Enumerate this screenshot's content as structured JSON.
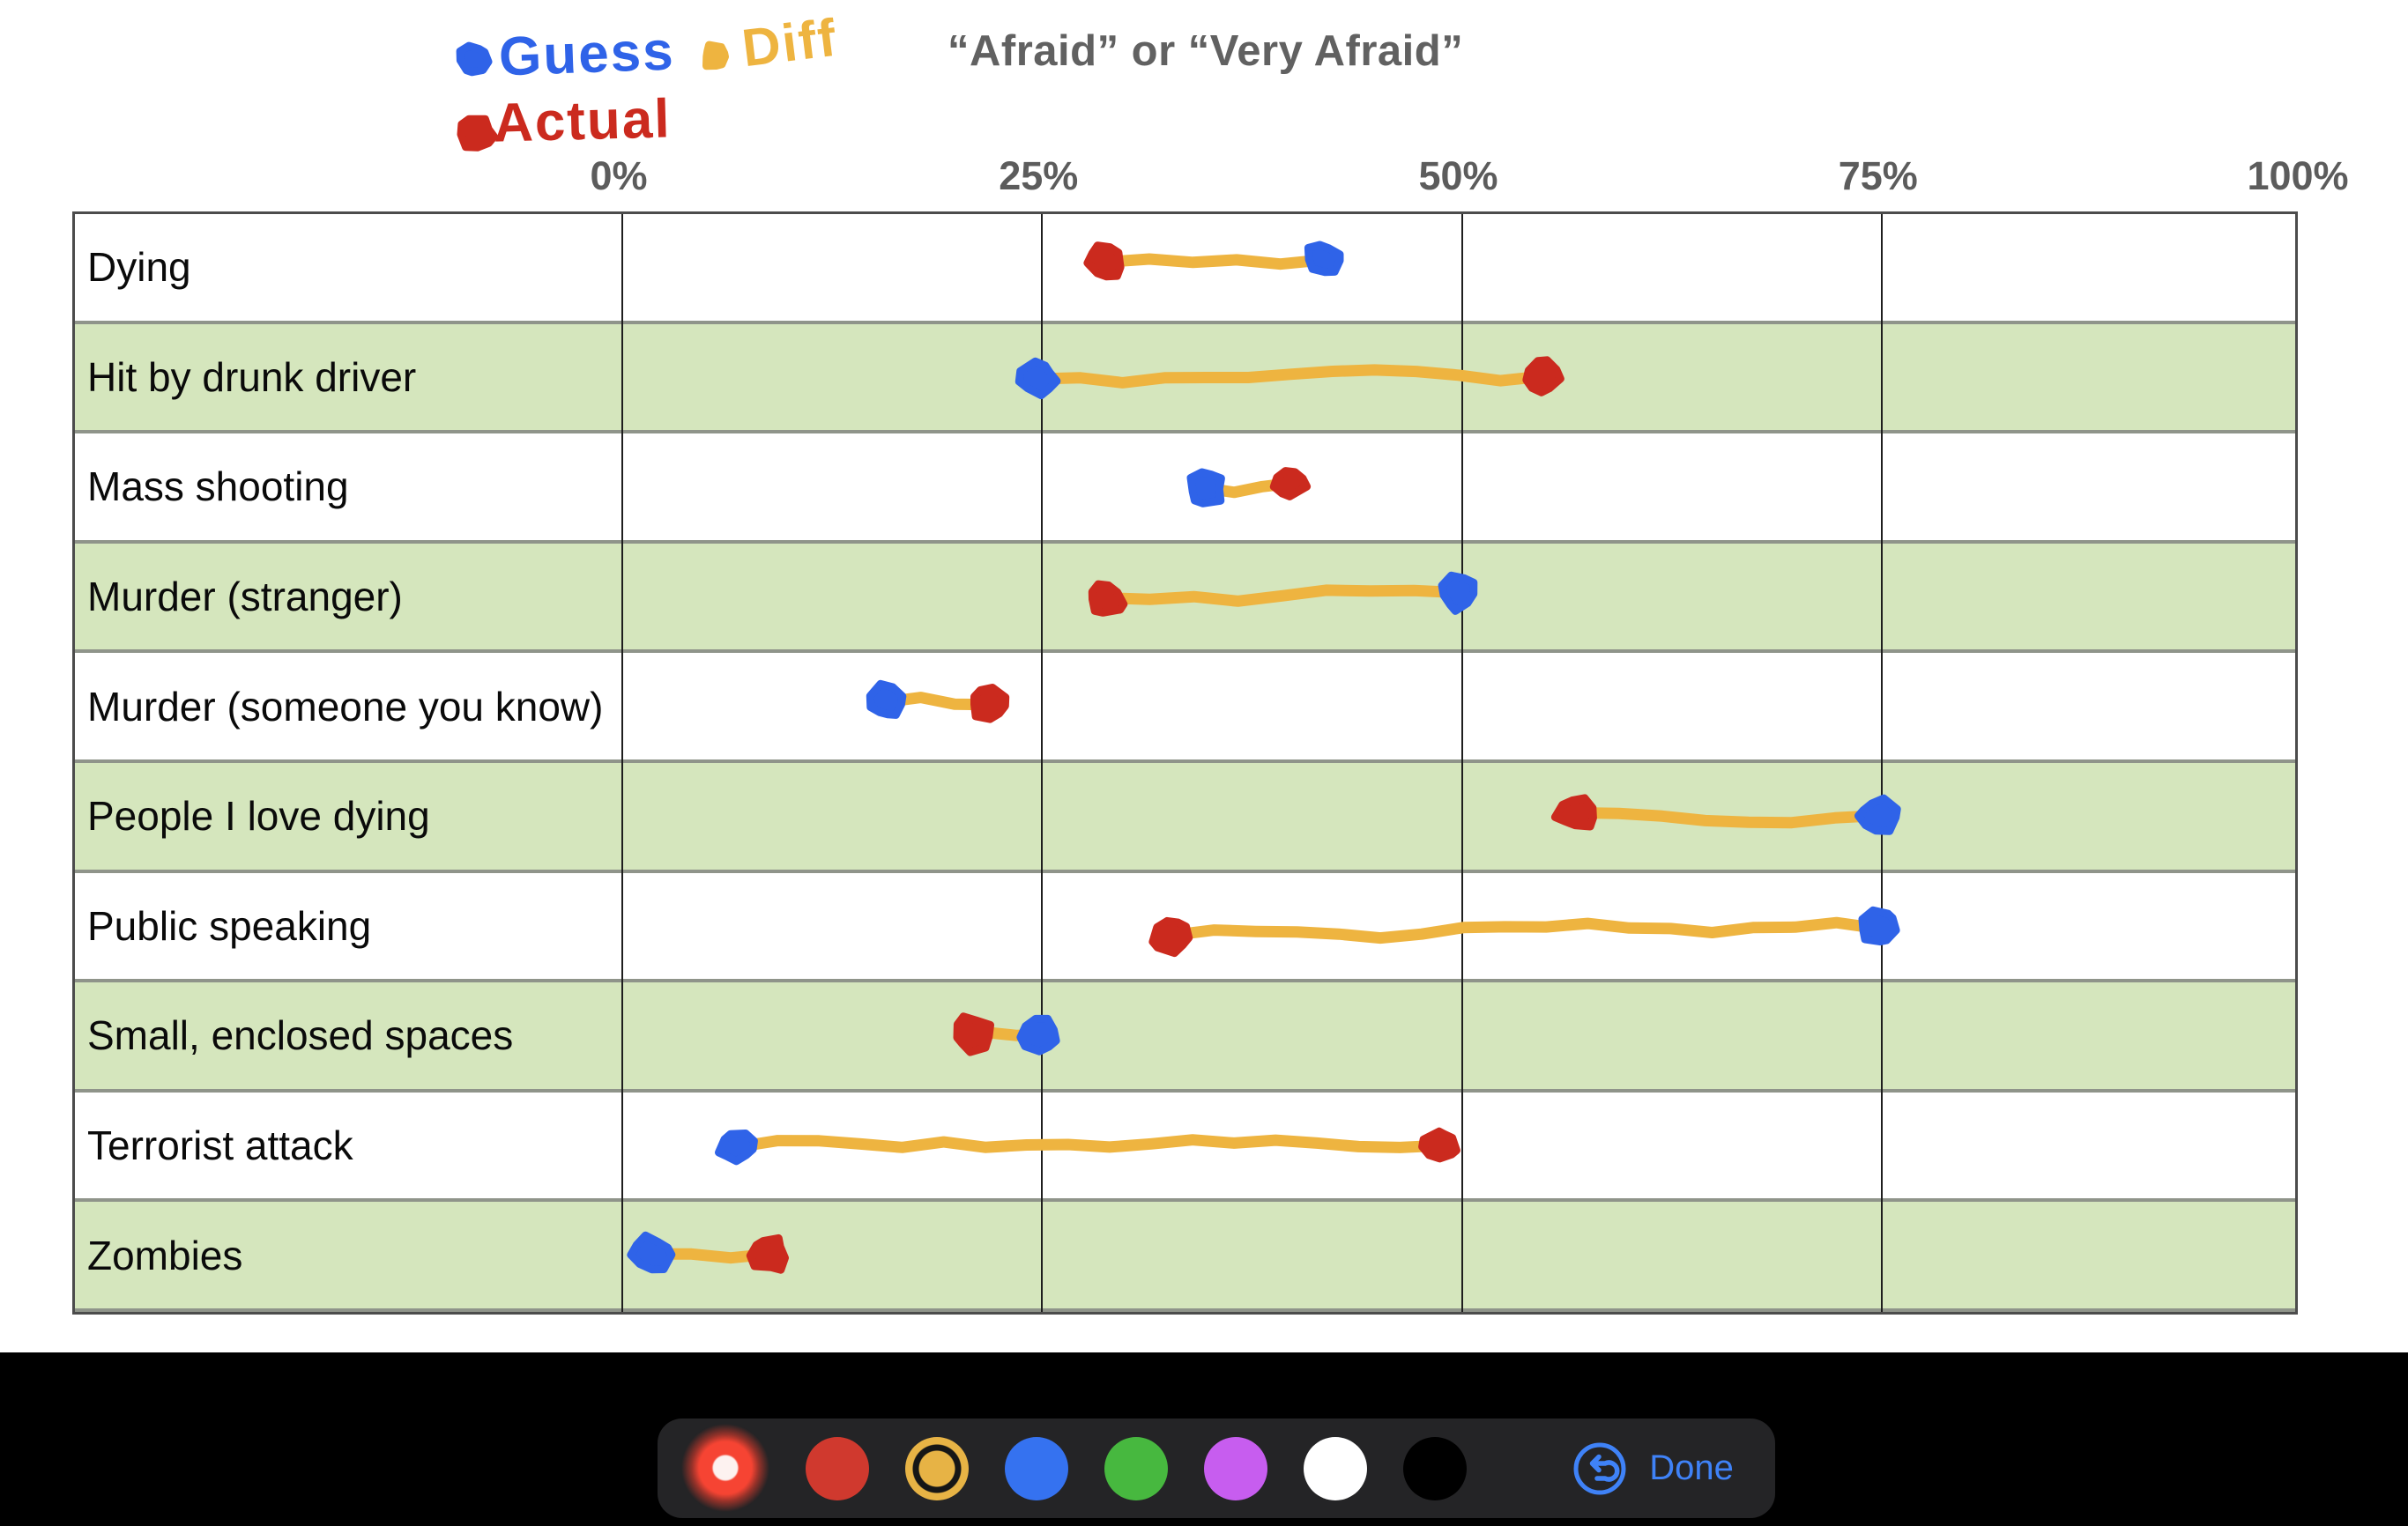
{
  "title": "“Afraid” or “Very Afraid”",
  "legend": {
    "guess": {
      "label": "Guess",
      "color": "#2f63e8"
    },
    "diff": {
      "label": "Diff",
      "color": "#eeb440"
    },
    "actual": {
      "label": "Actual",
      "color": "#cb2a1e"
    }
  },
  "axis": {
    "ticks": [
      "0%",
      "25%",
      "50%",
      "75%",
      "100%"
    ]
  },
  "chart_data": {
    "type": "dumbbell",
    "title": "“Afraid” or “Very Afraid”",
    "xlabel": "",
    "ylabel": "",
    "x_axis": {
      "min": 0,
      "max": 100,
      "unit": "%",
      "ticks": [
        "0%",
        "25%",
        "50%",
        "75%",
        "100%"
      ],
      "grid": true
    },
    "categories": [
      "Dying",
      "Hit by drunk driver",
      "Mass shooting",
      "Murder (stranger)",
      "Murder (someone you know)",
      "People I love dying",
      "Public speaking",
      "Small, enclosed spaces",
      "Terrorist attack",
      "Zombies"
    ],
    "series": [
      {
        "name": "Guess",
        "color": "#2f63e8",
        "values": [
          42,
          25,
          35,
          50,
          16,
          75,
          75,
          25,
          7,
          2
        ]
      },
      {
        "name": "Actual",
        "color": "#cb2a1e",
        "values": [
          29,
          55,
          40,
          29,
          22,
          57,
          33,
          21,
          49,
          9
        ]
      }
    ],
    "connector": {
      "name": "Diff",
      "color": "#eeb440"
    },
    "row_shading": [
      "#ffffff",
      "#d5e6bd"
    ],
    "legend_position": "top-left"
  },
  "toolbar": {
    "active_tool": "red-laser-pen",
    "colors": [
      {
        "name": "red",
        "hex": "#d0392e",
        "selected": false
      },
      {
        "name": "yellow",
        "hex": "#e7b345",
        "selected": true
      },
      {
        "name": "blue",
        "hex": "#3572f0",
        "selected": false
      },
      {
        "name": "green",
        "hex": "#47b83f",
        "selected": false
      },
      {
        "name": "purple",
        "hex": "#c75def",
        "selected": false
      },
      {
        "name": "white",
        "hex": "#ffffff",
        "selected": false
      },
      {
        "name": "black",
        "hex": "#000000",
        "selected": false
      }
    ],
    "undo_label": "undo",
    "done_label": "Done",
    "accent": "#3f82f7"
  }
}
